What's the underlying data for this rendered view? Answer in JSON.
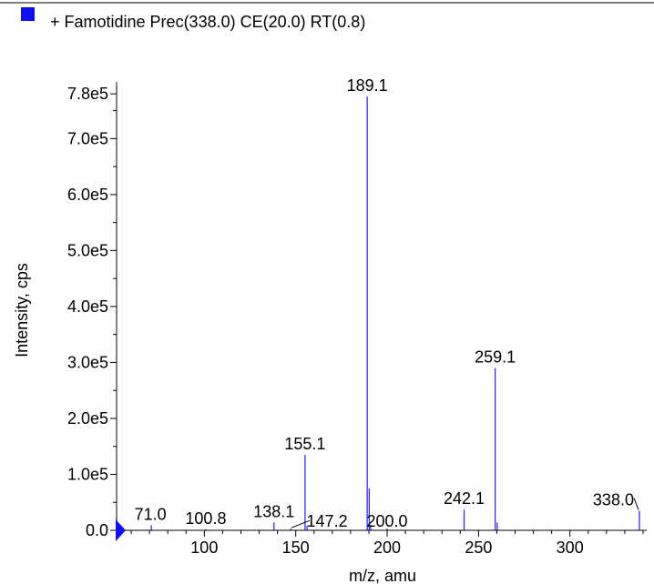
{
  "chart_data": {
    "type": "bar",
    "legend": {
      "label": "+ Famotidine Prec(338.0) CE(20.0) RT(0.8)",
      "color": "#1010ee",
      "position": "top-left"
    },
    "xlabel": "m/z, amu",
    "ylabel": "Intensity, cps",
    "xlim": [
      52,
      342
    ],
    "ylim": [
      0,
      790000
    ],
    "x_ticks": [
      100,
      150,
      200,
      250,
      300
    ],
    "x_tick_labels": [
      "100",
      "150",
      "200",
      "250",
      "300"
    ],
    "y_ticks": [
      0,
      100000,
      200000,
      300000,
      400000,
      500000,
      600000,
      700000,
      780000
    ],
    "y_tick_labels": [
      "0.0",
      "1.0e5",
      "2.0e5",
      "3.0e5",
      "4.0e5",
      "5.0e5",
      "6.0e5",
      "7.0e5",
      "7.8e5"
    ],
    "grid": false,
    "series_color": "#3030ee",
    "peaks": [
      {
        "x": 71.0,
        "y": 9000
      },
      {
        "x": 100.8,
        "y": 2000
      },
      {
        "x": 138.1,
        "y": 14000
      },
      {
        "x": 147.2,
        "y": 3000
      },
      {
        "x": 155.1,
        "y": 135000
      },
      {
        "x": 156.2,
        "y": 8000
      },
      {
        "x": 189.1,
        "y": 775000
      },
      {
        "x": 190.2,
        "y": 75000
      },
      {
        "x": 191.0,
        "y": 10000
      },
      {
        "x": 200.0,
        "y": 3000
      },
      {
        "x": 242.1,
        "y": 37000
      },
      {
        "x": 259.1,
        "y": 290000
      },
      {
        "x": 260.2,
        "y": 14000
      },
      {
        "x": 338.0,
        "y": 35000
      }
    ],
    "labels": [
      {
        "text": "71.0",
        "x": 71.0,
        "y": 9000
      },
      {
        "text": "100.8",
        "x": 100.8,
        "y": 2000
      },
      {
        "text": "138.1",
        "x": 138.1,
        "y": 14000
      },
      {
        "text": "147.2",
        "x": 147.2,
        "y": 3000
      },
      {
        "text": "155.1",
        "x": 155.1,
        "y": 135000
      },
      {
        "text": "189.1",
        "x": 189.1,
        "y": 775000
      },
      {
        "text": "200.0",
        "x": 200.0,
        "y": 3000
      },
      {
        "text": "242.1",
        "x": 242.1,
        "y": 37000
      },
      {
        "text": "259.1",
        "x": 259.1,
        "y": 290000
      },
      {
        "text": "338.0",
        "x": 338.0,
        "y": 35000
      }
    ]
  }
}
